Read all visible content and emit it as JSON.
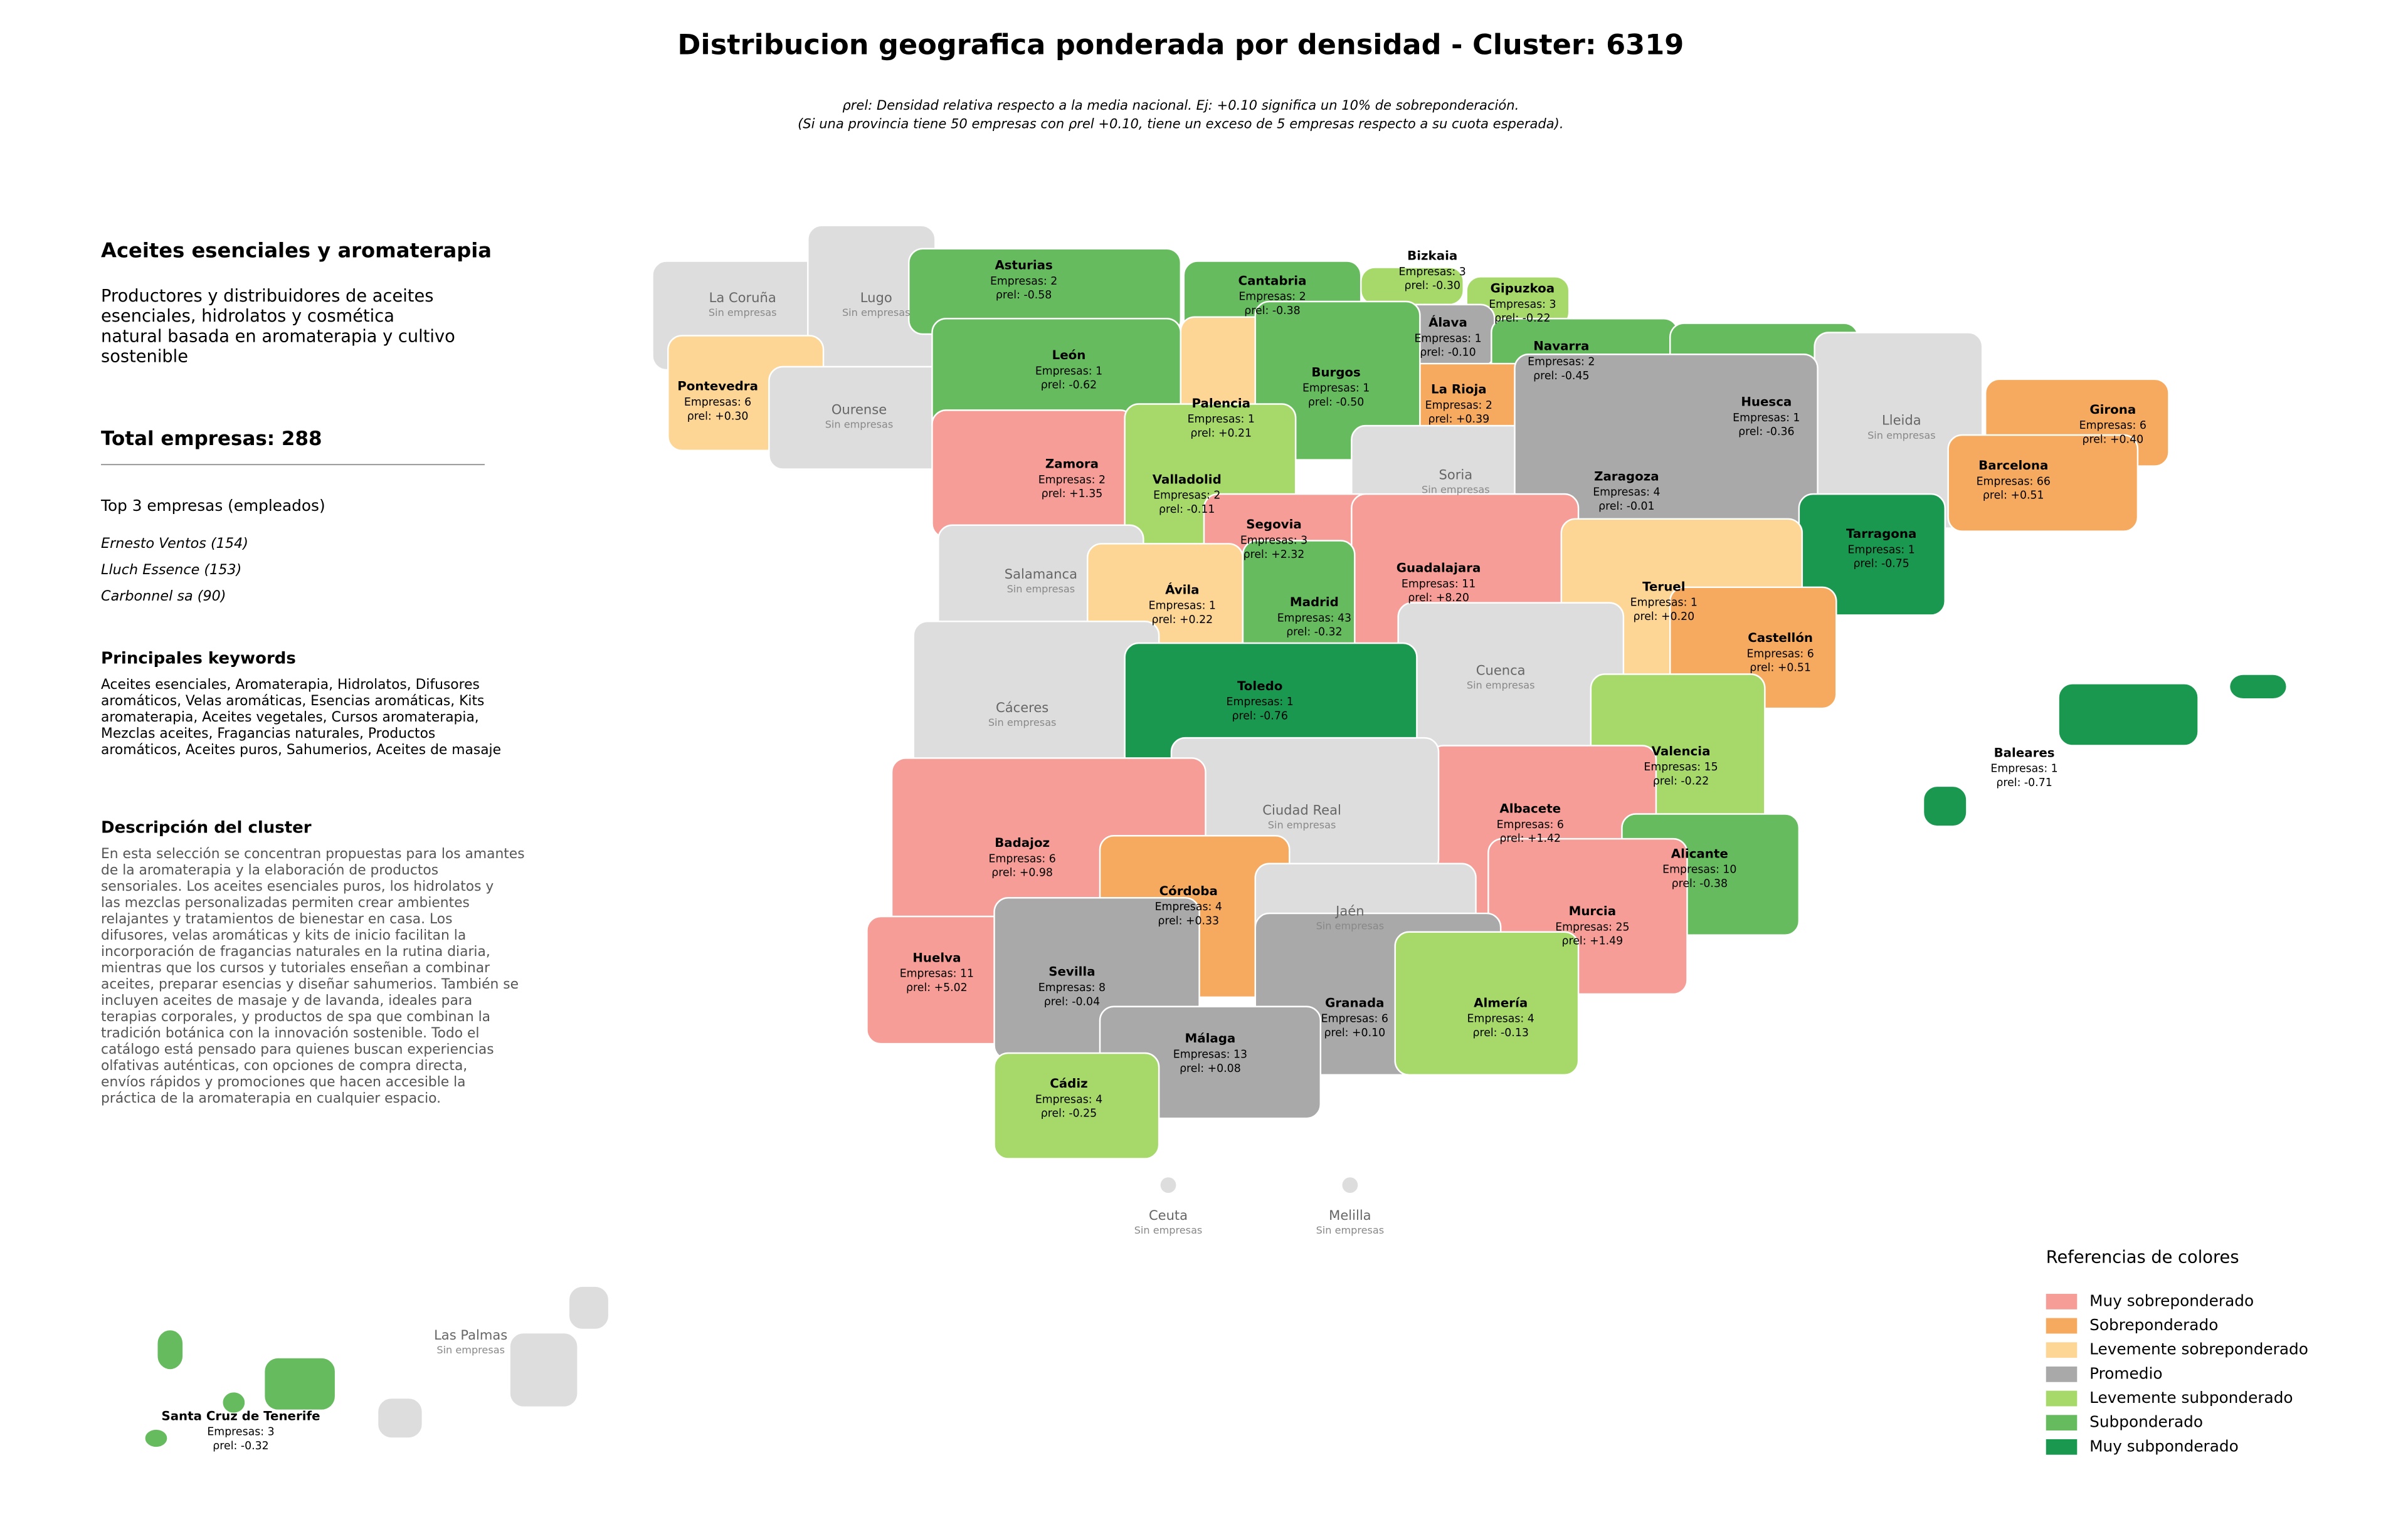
{
  "title": "Distribucion geografica ponderada por densidad - Cluster: 6319",
  "note": [
    "ρrel: Densidad relativa respecto a la media nacional. Ej: +0.10 significa un 10% de sobreponderación.",
    "(Si una provincia tiene 50 empresas con ρrel +0.10, tiene un exceso de 5 empresas respecto a su cuota esperada)."
  ],
  "sidebar": {
    "heading": "Aceites esenciales y aromaterapia",
    "intro": [
      "Productores y distribuidores de aceites",
      "esenciales, hidrolatos y cosmética",
      "natural basada en aromaterapia y cultivo",
      "sostenible"
    ],
    "total": "Total empresas: 288",
    "top_title": "Top 3 empresas (empleados)",
    "top": [
      "Ernesto Ventos (154)",
      "Lluch Essence (153)",
      "Carbonnel sa (90)"
    ],
    "keywords_title": "Principales keywords",
    "keywords": [
      "Aceites esenciales, Aromaterapia, Hidrolatos, Difusores",
      "aromáticos, Velas aromáticas, Esencias aromáticas, Kits",
      "aromaterapia, Aceites vegetales, Cursos aromaterapia,",
      "Mezclas aceites, Fragancias naturales, Productos",
      "aromáticos, Aceites puros, Sahumerios, Aceites de masaje"
    ],
    "description_title": "Descripción del cluster",
    "description": [
      "En esta selección se concentran propuestas para los amantes",
      "de la aromaterapia y la elaboración de productos",
      "sensoriales. Los aceites esenciales puros, los hidrolatos y",
      "las mezclas personalizadas permiten crear ambientes",
      "relajantes y tratamientos de bienestar en casa. Los",
      "difusores, velas aromáticas y kits de inicio facilitan la",
      "incorporación de fragancias naturales en la rutina diaria,",
      "mientras que los cursos y tutoriales enseñan a combinar",
      "aceites, preparar esencias y diseñar sahumerios. También se",
      "incluyen aceites de masaje y de lavanda, ideales para",
      "terapias corporales, y productos de spa que combinan la",
      "tradición botánica con la innovación sostenible. Todo el",
      "catálogo está pensado para quienes buscan experiencias",
      "olfativas auténticas, con opciones de compra directa,",
      "envíos rápidos y promociones que hacen accesible la",
      "práctica de la aromaterapia en cualquier espacio."
    ]
  },
  "legend": {
    "title": "Referencias de colores",
    "empty_color": "#dddddd",
    "items": [
      {
        "label": "Muy sobreponderado",
        "color": "#f59d96"
      },
      {
        "label": "Sobreponderado",
        "color": "#f6aa5f"
      },
      {
        "label": "Levemente sobreponderado",
        "color": "#fdd594"
      },
      {
        "label": "Promedio",
        "color": "#a9a9a9"
      },
      {
        "label": "Levemente subponderado",
        "color": "#a6d96a"
      },
      {
        "label": "Subponderado",
        "color": "#66bb5e"
      },
      {
        "label": "Muy subponderado",
        "color": "#1a9850"
      }
    ]
  },
  "provinces": [
    {
      "name": "La Coruña",
      "status": "Sin empresas"
    },
    {
      "name": "Lugo",
      "status": "Sin empresas"
    },
    {
      "name": "Pontevedra",
      "companies": "Empresas: 6",
      "rho": "ρrel: +0.30",
      "level": 2
    },
    {
      "name": "Ourense",
      "status": "Sin empresas"
    },
    {
      "name": "Asturias",
      "companies": "Empresas: 2",
      "rho": "ρrel: -0.58",
      "level": 5
    },
    {
      "name": "León",
      "companies": "Empresas: 1",
      "rho": "ρrel: -0.62",
      "level": 5
    },
    {
      "name": "Cantabria",
      "companies": "Empresas: 2",
      "rho": "ρrel: -0.38",
      "level": 5
    },
    {
      "name": "Bizkaia",
      "companies": "Empresas: 3",
      "rho": "ρrel: -0.30",
      "level": 4
    },
    {
      "name": "Gipuzkoa",
      "companies": "Empresas: 3",
      "rho": "ρrel: -0.22",
      "level": 4
    },
    {
      "name": "Álava",
      "companies": "Empresas: 1",
      "rho": "ρrel: -0.10",
      "level": 3
    },
    {
      "name": "Navarra",
      "companies": "Empresas: 2",
      "rho": "ρrel: -0.45",
      "level": 5
    },
    {
      "name": "La Rioja",
      "companies": "Empresas: 2",
      "rho": "ρrel: +0.39",
      "level": 1
    },
    {
      "name": "Palencia",
      "companies": "Empresas: 1",
      "rho": "ρrel: +0.21",
      "level": 2
    },
    {
      "name": "Burgos",
      "companies": "Empresas: 1",
      "rho": "ρrel: -0.50",
      "level": 5
    },
    {
      "name": "Huesca",
      "companies": "Empresas: 1",
      "rho": "ρrel: -0.36",
      "level": 5
    },
    {
      "name": "Girona",
      "companies": "Empresas: 6",
      "rho": "ρrel: +0.40",
      "level": 1
    },
    {
      "name": "Lleida",
      "status": "Sin empresas"
    },
    {
      "name": "Barcelona",
      "companies": "Empresas: 66",
      "rho": "ρrel: +0.51",
      "level": 1
    },
    {
      "name": "Zamora",
      "companies": "Empresas: 2",
      "rho": "ρrel: +1.35",
      "level": 0
    },
    {
      "name": "Valladolid",
      "companies": "Empresas: 2",
      "rho": "ρrel: -0.11",
      "level": 4
    },
    {
      "name": "Soria",
      "status": "Sin empresas"
    },
    {
      "name": "Zaragoza",
      "companies": "Empresas: 4",
      "rho": "ρrel: -0.01",
      "level": 3
    },
    {
      "name": "Segovia",
      "companies": "Empresas: 3",
      "rho": "ρrel: +2.32",
      "level": 0
    },
    {
      "name": "Tarragona",
      "companies": "Empresas: 1",
      "rho": "ρrel: -0.75",
      "level": 6
    },
    {
      "name": "Salamanca",
      "status": "Sin empresas"
    },
    {
      "name": "Guadalajara",
      "companies": "Empresas: 11",
      "rho": "ρrel: +8.20",
      "level": 0
    },
    {
      "name": "Ávila",
      "companies": "Empresas: 1",
      "rho": "ρrel: +0.22",
      "level": 2
    },
    {
      "name": "Madrid",
      "companies": "Empresas: 43",
      "rho": "ρrel: -0.32",
      "level": 5
    },
    {
      "name": "Teruel",
      "companies": "Empresas: 1",
      "rho": "ρrel: +0.20",
      "level": 2
    },
    {
      "name": "Castellón",
      "companies": "Empresas: 6",
      "rho": "ρrel: +0.51",
      "level": 1
    },
    {
      "name": "Cuenca",
      "status": "Sin empresas"
    },
    {
      "name": "Cáceres",
      "status": "Sin empresas"
    },
    {
      "name": "Toledo",
      "companies": "Empresas: 1",
      "rho": "ρrel: -0.76",
      "level": 6
    },
    {
      "name": "Valencia",
      "companies": "Empresas: 15",
      "rho": "ρrel: -0.22",
      "level": 4
    },
    {
      "name": "Baleares",
      "companies": "Empresas: 1",
      "rho": "ρrel: -0.71",
      "level": 6
    },
    {
      "name": "Albacete",
      "companies": "Empresas: 6",
      "rho": "ρrel: +1.42",
      "level": 0
    },
    {
      "name": "Ciudad Real",
      "status": "Sin empresas"
    },
    {
      "name": "Badajoz",
      "companies": "Empresas: 6",
      "rho": "ρrel: +0.98",
      "level": 0
    },
    {
      "name": "Alicante",
      "companies": "Empresas: 10",
      "rho": "ρrel: -0.38",
      "level": 5
    },
    {
      "name": "Córdoba",
      "companies": "Empresas: 4",
      "rho": "ρrel: +0.33",
      "level": 1
    },
    {
      "name": "Jaén",
      "status": "Sin empresas"
    },
    {
      "name": "Murcia",
      "companies": "Empresas: 25",
      "rho": "ρrel: +1.49",
      "level": 0
    },
    {
      "name": "Huelva",
      "companies": "Empresas: 11",
      "rho": "ρrel: +5.02",
      "level": 0
    },
    {
      "name": "Sevilla",
      "companies": "Empresas: 8",
      "rho": "ρrel: -0.04",
      "level": 3
    },
    {
      "name": "Granada",
      "companies": "Empresas: 6",
      "rho": "ρrel: +0.10",
      "level": 3
    },
    {
      "name": "Almería",
      "companies": "Empresas: 4",
      "rho": "ρrel: -0.13",
      "level": 4
    },
    {
      "name": "Málaga",
      "companies": "Empresas: 13",
      "rho": "ρrel: +0.08",
      "level": 3
    },
    {
      "name": "Cádiz",
      "companies": "Empresas: 4",
      "rho": "ρrel: -0.25",
      "level": 4
    },
    {
      "name": "Ceuta",
      "status": "Sin empresas"
    },
    {
      "name": "Melilla",
      "status": "Sin empresas"
    },
    {
      "name": "Las Palmas",
      "status": "Sin empresas"
    },
    {
      "name": "Santa Cruz de Tenerife",
      "companies": "Empresas: 3",
      "rho": "ρrel: -0.32",
      "level": 5
    }
  ]
}
